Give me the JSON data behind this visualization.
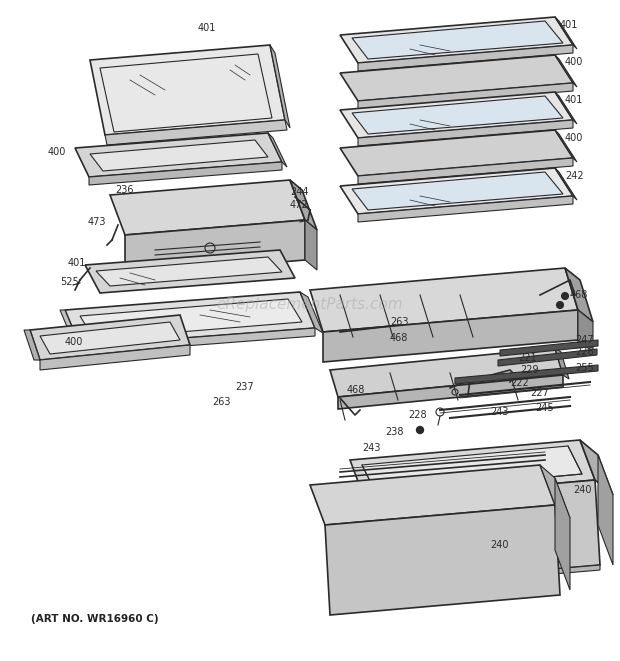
{
  "bg_color": "#ffffff",
  "line_color": "#2a2a2a",
  "label_color": "#2a2a2a",
  "watermark_text": "eReplacementParts.com",
  "footer_text": "(ART NO. WR16960 C)",
  "figsize": [
    6.2,
    6.61
  ],
  "dpi": 100
}
